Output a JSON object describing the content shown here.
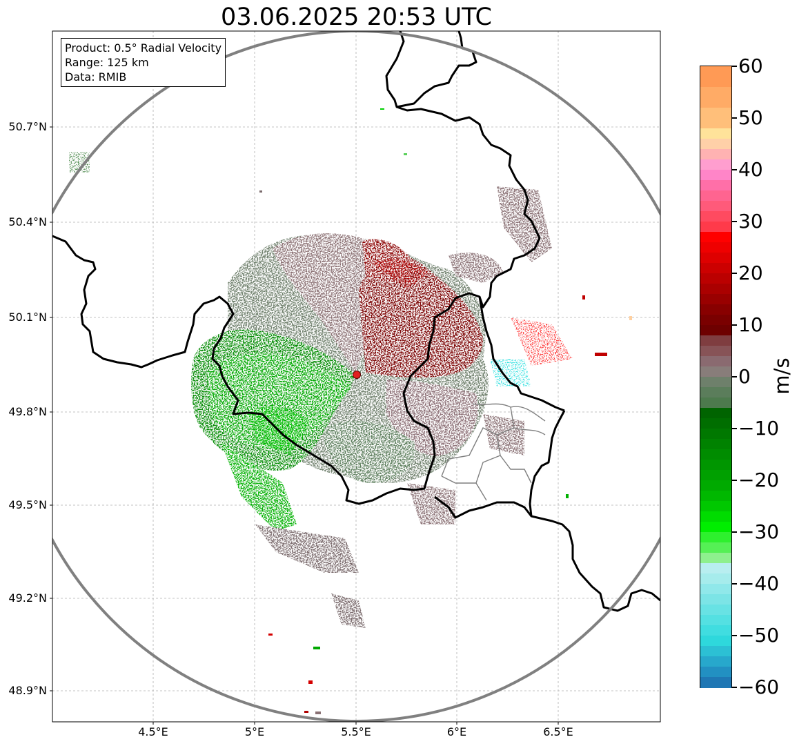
{
  "title": "03.06.2025 20:53 UTC",
  "info_box": {
    "product": "Product: 0.5° Radial Velocity",
    "range": "Range: 125 km",
    "data": "Data: RMIB"
  },
  "map": {
    "lon_range": [
      4.0,
      7.0
    ],
    "lat_range": [
      48.8,
      51.0
    ],
    "lat_ticks": [
      "50.7°N",
      "50.4°N",
      "50.1°N",
      "49.8°N",
      "49.5°N",
      "49.2°N",
      "48.9°N"
    ],
    "lon_ticks": [
      "4.5°E",
      "5°E",
      "5.5°E",
      "6°E",
      "6.5°E"
    ],
    "radar_site": {
      "lon": 5.505,
      "lat": 49.915
    },
    "range_ring_km": 125,
    "grid": true
  },
  "colorbar": {
    "label": "m/s",
    "min": -60,
    "max": 60,
    "tick_labels": [
      "60",
      "50",
      "40",
      "30",
      "20",
      "10",
      "0",
      "−10",
      "−20",
      "−30",
      "−40",
      "−50",
      "−60"
    ],
    "colors": {
      "neg_far": "#1f77b4",
      "neg_cyan": "#2ee0e0",
      "neg_light": "#b8eef0",
      "neg_green_bright": "#00ee00",
      "neg_green": "#007a00",
      "near_zero_neg": "#5b7d5b",
      "near_zero_pos": "#8a6f72",
      "pos_darkred": "#7a0000",
      "pos_red": "#f00000",
      "pos_pink": "#ff7fc0",
      "pos_yellow": "#ffe39a",
      "pos_orange": "#ff9a55"
    }
  }
}
